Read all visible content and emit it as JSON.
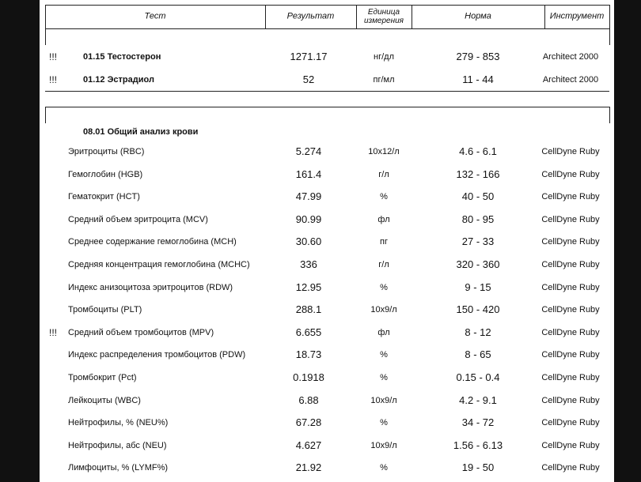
{
  "header": {
    "columns": [
      "Тест",
      "Результат",
      "Единица измерения",
      "Норма",
      "Инструмент"
    ]
  },
  "sections": [
    {
      "rows": [
        {
          "flag": "!!!",
          "test": "01.15 Тестостерон",
          "result": "1271.17",
          "unit": "нг/дл",
          "norm": "279 - 853",
          "instrument": "Architect 2000"
        },
        {
          "flag": "!!!",
          "test": "01.12 Эстрадиол",
          "result": "52",
          "unit": "пг/мл",
          "norm": "11 - 44",
          "instrument": "Architect 2000"
        }
      ]
    },
    {
      "title": "08.01 Общий анализ крови",
      "rows": [
        {
          "test": "Эритроциты (RBC)",
          "result": "5.274",
          "unit": "10x12/л",
          "norm": "4.6 - 6.1",
          "instrument": "CellDyne Ruby"
        },
        {
          "test": "Гемоглобин (HGB)",
          "result": "161.4",
          "unit": "г/л",
          "norm": "132 - 166",
          "instrument": "CellDyne Ruby"
        },
        {
          "test": "Гематокрит (HCT)",
          "result": "47.99",
          "unit": "%",
          "norm": "40 - 50",
          "instrument": "CellDyne Ruby"
        },
        {
          "test": "Средний объем эритроцита (MCV)",
          "result": "90.99",
          "unit": "фл",
          "norm": "80 - 95",
          "instrument": "CellDyne Ruby"
        },
        {
          "test": "Среднее содержание гемоглобина (MCH)",
          "result": "30.60",
          "unit": "пг",
          "norm": "27 - 33",
          "instrument": "CellDyne Ruby"
        },
        {
          "test": "Средняя концентрация гемоглобина (MCHC)",
          "result": "336",
          "unit": "г/л",
          "norm": "320 - 360",
          "instrument": "CellDyne Ruby"
        },
        {
          "test": "Индекс анизоцитоза эритроцитов (RDW)",
          "result": "12.95",
          "unit": "%",
          "norm": "9 - 15",
          "instrument": "CellDyne Ruby"
        },
        {
          "test": "Тромбоциты (PLT)",
          "result": "288.1",
          "unit": "10x9/л",
          "norm": "150 - 420",
          "instrument": "CellDyne Ruby"
        },
        {
          "flag": "!!!",
          "test": "Средний объем тромбоцитов (MPV)",
          "result": "6.655",
          "unit": "фл",
          "norm": "8 - 12",
          "instrument": "CellDyne Ruby"
        },
        {
          "test": "Индекс распределения тромбоцитов (PDW)",
          "result": "18.73",
          "unit": "%",
          "norm": "8 - 65",
          "instrument": "CellDyne Ruby"
        },
        {
          "test": "Тромбокрит (Pct)",
          "result": "0.1918",
          "unit": "%",
          "norm": "0.15 - 0.4",
          "instrument": "CellDyne Ruby"
        },
        {
          "test": "Лейкоциты (WBC)",
          "result": "6.88",
          "unit": "10x9/л",
          "norm": "4.2 - 9.1",
          "instrument": "CellDyne Ruby"
        },
        {
          "test": "Нейтрофилы, % (NEU%)",
          "result": "67.28",
          "unit": "%",
          "norm": "34 - 72",
          "instrument": "CellDyne Ruby"
        },
        {
          "test": "Нейтрофилы, абс (NEU)",
          "result": "4.627",
          "unit": "10x9/л",
          "norm": "1.56 - 6.13",
          "instrument": "CellDyne Ruby"
        },
        {
          "test": "Лимфоциты, % (LYMF%)",
          "result": "21.92",
          "unit": "%",
          "norm": "19 - 50",
          "instrument": "CellDyne Ruby"
        }
      ]
    }
  ]
}
